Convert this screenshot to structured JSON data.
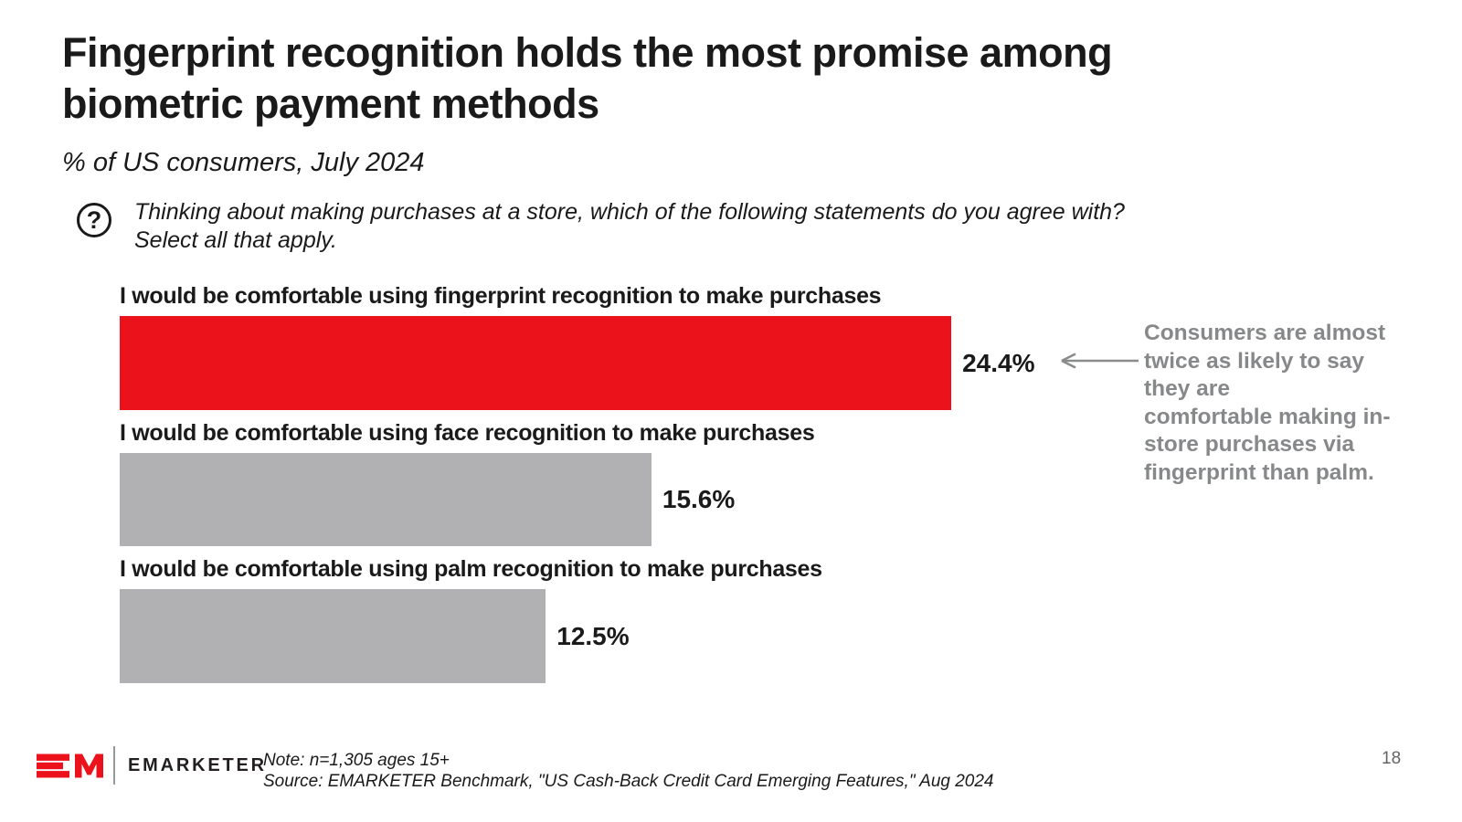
{
  "slide": {
    "title": "Fingerprint recognition holds the most promise among\nbiometric payment methods",
    "subtitle": "% of US consumers, July 2024",
    "question": "Thinking about making purchases at a store, which of the following statements do you agree with?\nSelect all that apply.",
    "question_icon": "question-mark-circle",
    "page_number": "18"
  },
  "chart_data": {
    "type": "bar",
    "orientation": "horizontal",
    "unit": "%",
    "categories": [
      "I would be comfortable using fingerprint recognition to make purchases",
      "I would be comfortable using face recognition to make purchases",
      "I would be comfortable using palm recognition to make purchases"
    ],
    "values": [
      24.4,
      15.6,
      12.5
    ],
    "value_labels": [
      "24.4%",
      "15.6%",
      "12.5%"
    ],
    "bar_colors": [
      "#EC121C",
      "#B1B1B3",
      "#B1B1B3"
    ],
    "xlim": [
      0,
      24.4
    ],
    "grid": false,
    "value_label_position": "right-of-bar"
  },
  "annotation": {
    "text": "Consumers are almost\ntwice as likely to say\nthey are\ncomfortable making in-\nstore purchases via\nfingerprint than palm.",
    "arrow": "left-arrow",
    "color": "#87888A",
    "arrow_color": "#8A8B8D"
  },
  "footer": {
    "logo_monogram": "EM",
    "logo_text": "EMARKETER",
    "note": "Note: n=1,305 ages 15+",
    "source": "Source: EMARKETER Benchmark, \"US Cash-Back Credit Card Emerging Features,\" Aug 2024"
  },
  "colors": {
    "accent_red": "#EC121C",
    "bar_gray": "#B1B1B3",
    "text_black": "#1A1A1A",
    "annotation_gray": "#87888A",
    "page_number_gray": "#636466"
  }
}
